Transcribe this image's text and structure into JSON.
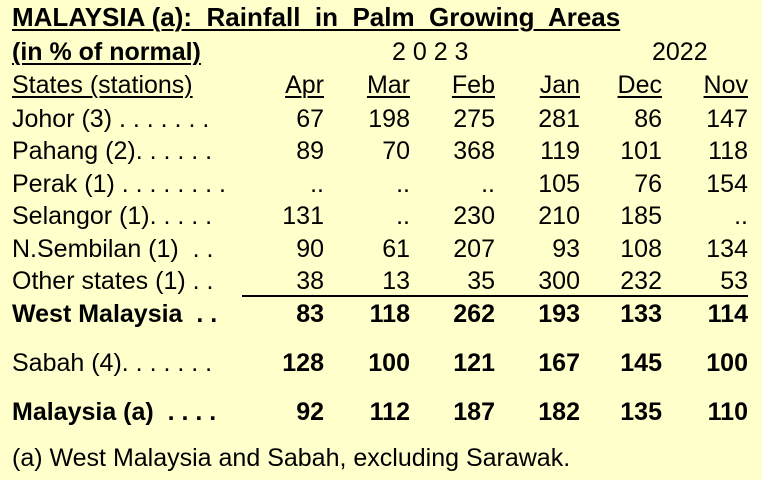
{
  "title": "MALAYSIA (a):  Rainfall  in  Palm  Growing  Areas",
  "subtitle": "(in % of normal)",
  "year_groups": [
    "2 0 2 3",
    "2022"
  ],
  "stub_header": "States (stations)",
  "columns": [
    "Apr",
    "Mar",
    "Feb",
    "Jan",
    "Dec",
    "Nov"
  ],
  "rows": [
    {
      "label": "Johor (3) . . . . . . .",
      "bold": false,
      "values": [
        "67",
        "198",
        "275",
        "281",
        "86",
        "147"
      ]
    },
    {
      "label": "Pahang (2). . . . . .",
      "bold": false,
      "values": [
        "89",
        "70",
        "368",
        "119",
        "101",
        "118"
      ]
    },
    {
      "label": "Perak (1) . . . . . . . .",
      "bold": false,
      "values": [
        "..",
        "..",
        "..",
        "105",
        "76",
        "154"
      ]
    },
    {
      "label": "Selangor (1). . . . .",
      "bold": false,
      "values": [
        "131",
        "..",
        "230",
        "210",
        "185",
        ".."
      ]
    },
    {
      "label": "N.Sembilan (1)  . .",
      "bold": false,
      "values": [
        "90",
        "61",
        "207",
        "93",
        "108",
        "134"
      ]
    },
    {
      "label": "Other states (1) . .",
      "bold": false,
      "values": [
        "38",
        "13",
        "35",
        "300",
        "232",
        "53"
      ]
    },
    {
      "label": "West Malaysia  . .",
      "bold": true,
      "values": [
        "83",
        "118",
        "262",
        "193",
        "133",
        "114"
      ]
    },
    {
      "label": "Sabah (4). . . . . . .",
      "bold": false,
      "values": [
        "128",
        "100",
        "121",
        "167",
        "145",
        "100"
      ]
    },
    {
      "label": "Malaysia (a)  . . . .",
      "bold": true,
      "values": [
        "92",
        "112",
        "187",
        "182",
        "135",
        "110"
      ]
    }
  ],
  "footnote": "(a) West Malaysia and Sabah, excluding Sarawak."
}
